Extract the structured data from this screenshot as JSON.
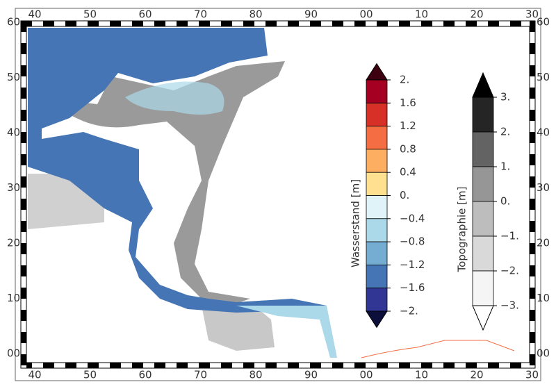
{
  "map": {
    "lon_labels_top": [
      "40",
      "50",
      "60",
      "70",
      "80",
      "90",
      "00",
      "10",
      "20",
      "30"
    ],
    "lon_labels_bottom": [
      "40",
      "50",
      "60",
      "70",
      "80",
      "90",
      "00",
      "10",
      "20",
      "30"
    ],
    "lat_labels_left": [
      "60",
      "50",
      "40",
      "30",
      "20",
      "10",
      "00"
    ],
    "lat_labels_right": [
      "60",
      "50",
      "40",
      "30",
      "20",
      "10",
      "00"
    ]
  },
  "colorbars": [
    {
      "title": "Wasserstand [m]",
      "ticks": [
        {
          "value": 2,
          "label": "2."
        },
        1.6,
        1.2,
        0.8,
        0.4,
        {
          "value": 0,
          "label": "0."
        },
        {
          "value": -0.4,
          "label": "−0.4"
        },
        {
          "value": -0.8,
          "label": "−0.8"
        },
        {
          "value": -1.2,
          "label": "−1.2"
        },
        {
          "value": -1.6,
          "label": "−1.6"
        },
        {
          "value": -2,
          "label": "−2."
        }
      ],
      "colors": [
        "#a50021",
        "#d73027",
        "#f46d43",
        "#fdae61",
        "#fee090",
        "#e0f3f8",
        "#abd9e9",
        "#74add1",
        "#4575b4",
        "#313695"
      ],
      "over_color": "#3d0010",
      "under_color": "#0b0f3a"
    },
    {
      "title": "Topographie [m]",
      "ticks": [
        {
          "value": 3,
          "label": "3."
        },
        {
          "value": 2,
          "label": "2."
        },
        {
          "value": 1,
          "label": "1."
        },
        {
          "value": 0,
          "label": "0."
        },
        {
          "value": -1,
          "label": "−1."
        },
        {
          "value": -2,
          "label": "−2."
        },
        {
          "value": -3,
          "label": "−3."
        }
      ],
      "colors": [
        "#252525",
        "#636363",
        "#969696",
        "#bdbdbd",
        "#d9d9d9",
        "#f5f5f5"
      ],
      "over_color": "#000000",
      "under_color": "#ffffff"
    }
  ]
}
